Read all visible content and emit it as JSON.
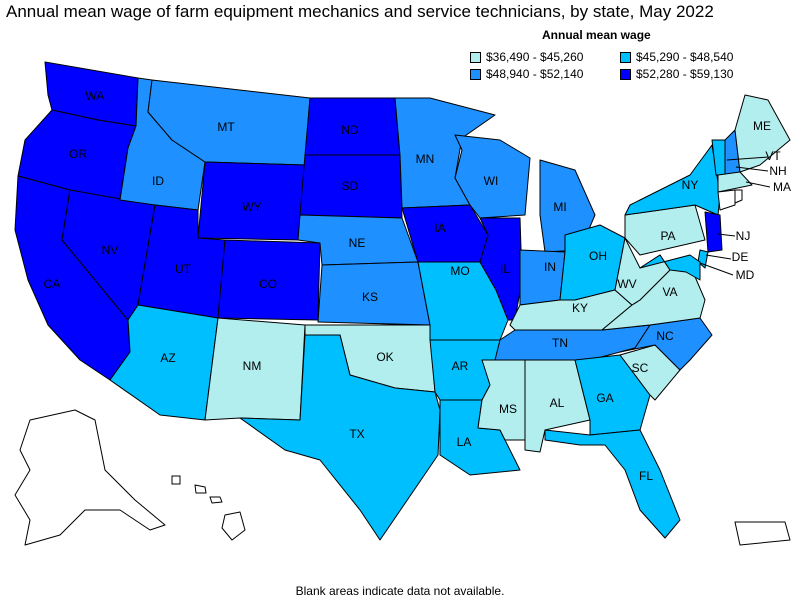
{
  "title": "Annual mean wage of farm equipment mechanics and service technicians, by state, May 2022",
  "legend": {
    "title": "Annual mean wage",
    "items": [
      {
        "label": "$36,490 - $45,260",
        "color": "#b2eeee"
      },
      {
        "label": "$45,290 - $48,540",
        "color": "#00bfff"
      },
      {
        "label": "$48,940 - $52,140",
        "color": "#1e90ff"
      },
      {
        "label": "$52,280 - $59,130",
        "color": "#0000ff"
      }
    ]
  },
  "note": "Blank areas indicate data not available.",
  "states": {
    "WA": {
      "bin": 3
    },
    "OR": {
      "bin": 3
    },
    "CA": {
      "bin": 3
    },
    "NV": {
      "bin": 3
    },
    "ID": {
      "bin": 2
    },
    "MT": {
      "bin": 2
    },
    "WY": {
      "bin": 3
    },
    "UT": {
      "bin": 3
    },
    "CO": {
      "bin": 3
    },
    "AZ": {
      "bin": 1
    },
    "NM": {
      "bin": 0
    },
    "ND": {
      "bin": 3
    },
    "SD": {
      "bin": 3
    },
    "NE": {
      "bin": 2
    },
    "KS": {
      "bin": 2
    },
    "OK": {
      "bin": 0
    },
    "TX": {
      "bin": 1
    },
    "MN": {
      "bin": 2
    },
    "IA": {
      "bin": 3
    },
    "MO": {
      "bin": 1
    },
    "AR": {
      "bin": 1
    },
    "LA": {
      "bin": 1
    },
    "WI": {
      "bin": 2
    },
    "IL": {
      "bin": 3
    },
    "MI": {
      "bin": 2
    },
    "IN": {
      "bin": 2
    },
    "OH": {
      "bin": 1
    },
    "KY": {
      "bin": 0
    },
    "TN": {
      "bin": 2
    },
    "MS": {
      "bin": 0
    },
    "AL": {
      "bin": 0
    },
    "GA": {
      "bin": 1
    },
    "FL": {
      "bin": 1
    },
    "SC": {
      "bin": 0
    },
    "NC": {
      "bin": 2
    },
    "VA": {
      "bin": 0
    },
    "WV": {
      "bin": 0
    },
    "PA": {
      "bin": 0
    },
    "NY": {
      "bin": 1
    },
    "VT": {
      "bin": 1
    },
    "NH": {
      "bin": 2
    },
    "ME": {
      "bin": 0
    },
    "MA": {
      "bin": 0
    },
    "CT": {
      "bin": null
    },
    "RI": {
      "bin": null
    },
    "NJ": {
      "bin": 3
    },
    "DE": {
      "bin": 1
    },
    "MD": {
      "bin": 1
    },
    "AK": {
      "bin": null
    },
    "HI": {
      "bin": null
    },
    "PR": {
      "bin": null
    }
  }
}
